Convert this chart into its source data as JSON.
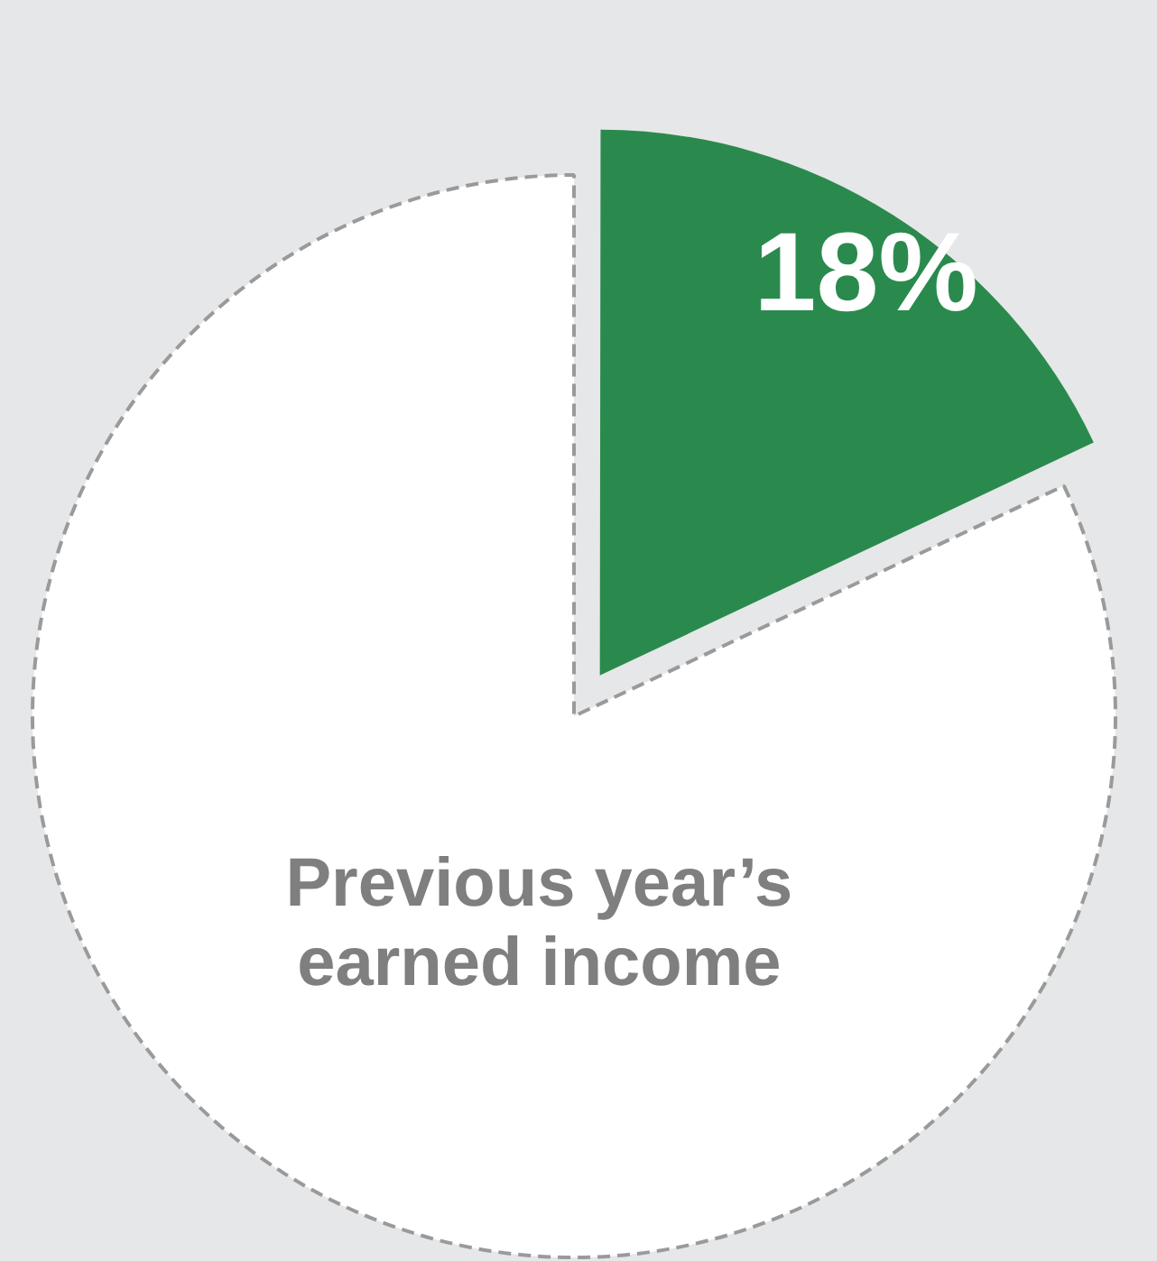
{
  "chart_data": {
    "type": "pie",
    "categories": [
      null,
      "Previous year’s earned income"
    ],
    "values": [
      18,
      82
    ],
    "colors": [
      "#2a8a4e",
      "#ffffff"
    ],
    "value_labels": [
      "18%",
      null
    ],
    "legend": false
  }
}
